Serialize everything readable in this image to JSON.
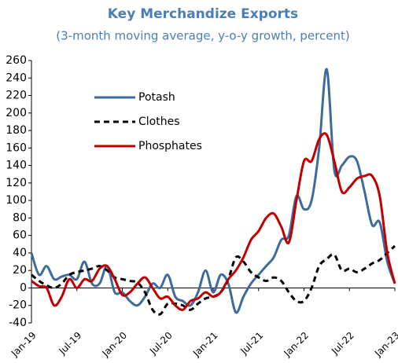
{
  "chart_data": {
    "type": "line",
    "title": "Key Merchandize Exports",
    "subtitle": "(3-month moving average, y-o-y growth, percent)",
    "categories": [
      "Jan-19",
      null,
      null,
      null,
      null,
      null,
      "Jul-19",
      null,
      null,
      null,
      null,
      null,
      "Jan-20",
      null,
      null,
      null,
      null,
      null,
      "Jul-20",
      null,
      null,
      null,
      null,
      null,
      "Jan-21",
      null,
      null,
      null,
      null,
      null,
      "Jul-21",
      null,
      null,
      null,
      null,
      null,
      "Jan-22",
      null,
      null,
      null,
      null,
      null,
      "Jul-22",
      null,
      null,
      null,
      null,
      null,
      "Jan-23"
    ],
    "series": [
      {
        "name": "Potash",
        "color": "#3e6b9e",
        "dash": false,
        "values": [
          40,
          15,
          25,
          10,
          13,
          15,
          10,
          30,
          5,
          5,
          25,
          -5,
          -5,
          -15,
          -20,
          -10,
          5,
          0,
          15,
          -10,
          -15,
          -20,
          -5,
          20,
          -5,
          15,
          5,
          -28,
          -10,
          5,
          15,
          25,
          35,
          55,
          60,
          105,
          90,
          100,
          160,
          250,
          135,
          140,
          150,
          145,
          110,
          72,
          75,
          30,
          5
        ]
      },
      {
        "name": "Clothes",
        "color": "#000000",
        "dash": true,
        "values": [
          15,
          8,
          3,
          0,
          5,
          15,
          18,
          20,
          22,
          25,
          20,
          12,
          10,
          8,
          6,
          -5,
          -25,
          -30,
          -18,
          -18,
          -20,
          -25,
          -18,
          -12,
          -10,
          -5,
          10,
          35,
          30,
          18,
          12,
          8,
          12,
          8,
          -5,
          -15,
          -15,
          0,
          25,
          33,
          38,
          20,
          22,
          18,
          22,
          28,
          32,
          40,
          48
        ]
      },
      {
        "name": "Phosphates",
        "color": "#c00000",
        "dash": false,
        "values": [
          8,
          2,
          0,
          -20,
          -10,
          10,
          0,
          10,
          8,
          22,
          25,
          10,
          -8,
          -5,
          5,
          12,
          0,
          -12,
          -10,
          -20,
          -25,
          -15,
          -12,
          -5,
          -10,
          -5,
          10,
          20,
          35,
          55,
          65,
          80,
          85,
          70,
          52,
          100,
          145,
          145,
          170,
          175,
          145,
          110,
          115,
          125,
          128,
          128,
          105,
          40,
          5
        ]
      }
    ],
    "ylim": [
      -40,
      260
    ],
    "yticks": [
      -40,
      -20,
      0,
      20,
      40,
      60,
      80,
      100,
      120,
      140,
      160,
      180,
      200,
      220,
      240,
      260
    ],
    "grid": false,
    "legend": "upper left"
  }
}
